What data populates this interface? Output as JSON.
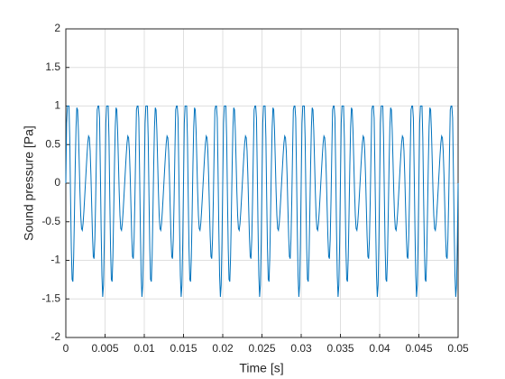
{
  "chart_data": {
    "type": "line",
    "xlabel": "Time [s]",
    "ylabel": "Sound pressure [Pa]",
    "xlim": [
      0,
      0.05
    ],
    "xticks": [
      0,
      0.005,
      0.01,
      0.015,
      0.02,
      0.025,
      0.03,
      0.035,
      0.04,
      0.045,
      0.05
    ],
    "ylim": [
      -2,
      2
    ],
    "yticks": [
      -2,
      -1.5,
      -1,
      -0.5,
      0,
      0.5,
      1,
      1.5,
      2
    ],
    "grid": true,
    "x": [
      0,
      0.0001,
      0.0002,
      0.0003,
      0.0004,
      0.0005,
      0.0006,
      0.0007,
      0.0008,
      0.0009,
      0.001,
      0.0011,
      0.0012,
      0.0013,
      0.0014,
      0.0015,
      0.0016,
      0.0017,
      0.0018,
      0.0019,
      0.002,
      0.0021,
      0.0022,
      0.0023,
      0.0024,
      0.0025,
      0.0026,
      0.0027,
      0.0028,
      0.0029,
      0.003,
      0.0031,
      0.0032,
      0.0033,
      0.0034,
      0.0035,
      0.0036,
      0.0037,
      0.0038,
      0.0039,
      0.004,
      0.0041,
      0.0042,
      0.0043,
      0.0044,
      0.0045,
      0.0046,
      0.0047,
      0.0048,
      0.0049,
      0.005,
      0.0051,
      0.0052,
      0.0053,
      0.0054,
      0.0055,
      0.0056,
      0.0057,
      0.0058,
      0.0059,
      0.006,
      0.0061,
      0.0062,
      0.0063,
      0.0064,
      0.0065,
      0.0066,
      0.0067,
      0.0068,
      0.0069,
      0.007,
      0.0071,
      0.0072,
      0.0073,
      0.0074,
      0.0075,
      0.0076,
      0.0077,
      0.0078,
      0.0079,
      0.008,
      0.0081,
      0.0082,
      0.0083,
      0.0084,
      0.0085,
      0.0086,
      0.0087,
      0.0088,
      0.0089,
      0.009,
      0.0091,
      0.0092,
      0.0093,
      0.0094,
      0.0095,
      0.0096,
      0.0097,
      0.0098,
      0.0099,
      0.01,
      0.0101,
      0.0102,
      0.0103,
      0.0104,
      0.0105,
      0.0106,
      0.0107,
      0.0108,
      0.0109,
      0.011,
      0.0111,
      0.0112,
      0.0113,
      0.0114,
      0.0115,
      0.0116,
      0.0117,
      0.0118,
      0.0119,
      0.012,
      0.0121,
      0.0122,
      0.0123,
      0.0124,
      0.0125,
      0.0126,
      0.0127,
      0.0128,
      0.0129,
      0.013,
      0.0131,
      0.0132,
      0.0133,
      0.0134,
      0.0135,
      0.0136,
      0.0137,
      0.0138,
      0.0139,
      0.014,
      0.0141,
      0.0142,
      0.0143,
      0.0144,
      0.0145,
      0.0146,
      0.0147,
      0.0148,
      0.0149,
      0.015,
      0.0151,
      0.0152,
      0.0153,
      0.0154,
      0.0155,
      0.0156,
      0.0157,
      0.0158,
      0.0159,
      0.016,
      0.0161,
      0.0162,
      0.0163,
      0.0164,
      0.0165,
      0.0166,
      0.0167,
      0.0168,
      0.0169,
      0.017,
      0.0171,
      0.0172,
      0.0173,
      0.0174,
      0.0175,
      0.0176,
      0.0177,
      0.0178,
      0.0179,
      0.018,
      0.0181,
      0.0182,
      0.0183,
      0.0184,
      0.0185,
      0.0186,
      0.0187,
      0.0188,
      0.0189,
      0.019,
      0.0191,
      0.0192,
      0.0193,
      0.0194,
      0.0195,
      0.0196,
      0.0197,
      0.0198,
      0.0199,
      0.02,
      0.0201,
      0.0202,
      0.0203,
      0.0204,
      0.0205,
      0.0206,
      0.0207,
      0.0208,
      0.0209,
      0.021,
      0.0211,
      0.0212,
      0.0213,
      0.0214,
      0.0215,
      0.0216,
      0.0217,
      0.0218,
      0.0219,
      0.022,
      0.0221,
      0.0222,
      0.0223,
      0.0224,
      0.0225,
      0.0226,
      0.0227,
      0.0228,
      0.0229,
      0.023,
      0.0231,
      0.0232,
      0.0233,
      0.0234,
      0.0235,
      0.0236,
      0.0237,
      0.0238,
      0.0239,
      0.024,
      0.0241,
      0.0242,
      0.0243,
      0.0244,
      0.0245,
      0.0246,
      0.0247,
      0.0248,
      0.0249,
      0.025,
      0.0251,
      0.0252,
      0.0253,
      0.0254,
      0.0255,
      0.0256,
      0.0257,
      0.0258,
      0.0259,
      0.026,
      0.0261,
      0.0262,
      0.0263,
      0.0264,
      0.0265,
      0.0266,
      0.0267,
      0.0268,
      0.0269,
      0.027,
      0.0271,
      0.0272,
      0.0273,
      0.0274,
      0.0275,
      0.0276,
      0.0277,
      0.0278,
      0.0279,
      0.028,
      0.0281,
      0.0282,
      0.0283,
      0.0284,
      0.0285,
      0.0286,
      0.0287,
      0.0288,
      0.0289,
      0.029,
      0.0291,
      0.0292,
      0.0293,
      0.0294,
      0.0295,
      0.0296,
      0.0297,
      0.0298,
      0.0299,
      0.03,
      0.0301,
      0.0302,
      0.0303,
      0.0304,
      0.0305,
      0.0306,
      0.0307,
      0.0308,
      0.0309,
      0.031,
      0.0311,
      0.0312,
      0.0313,
      0.0314,
      0.0315,
      0.0316,
      0.0317,
      0.0318,
      0.0319,
      0.032,
      0.0321,
      0.0322,
      0.0323,
      0.0324,
      0.0325,
      0.0326,
      0.0327,
      0.0328,
      0.0329,
      0.033,
      0.0331,
      0.0332,
      0.0333,
      0.0334,
      0.0335,
      0.0336,
      0.0337,
      0.0338,
      0.0339,
      0.034,
      0.0341,
      0.0342,
      0.0343,
      0.0344,
      0.0345,
      0.0346,
      0.0347,
      0.0348,
      0.0349,
      0.035,
      0.0351,
      0.0352,
      0.0353,
      0.0354,
      0.0355,
      0.0356,
      0.0357,
      0.0358,
      0.0359,
      0.036,
      0.0361,
      0.0362,
      0.0363,
      0.0364,
      0.0365,
      0.0366,
      0.0367,
      0.0368,
      0.0369,
      0.037,
      0.0371,
      0.0372,
      0.0373,
      0.0374,
      0.0375,
      0.0376,
      0.0377,
      0.0378,
      0.0379,
      0.038,
      0.0381,
      0.0382,
      0.0383,
      0.0384,
      0.0385,
      0.0386,
      0.0387,
      0.0388,
      0.0389,
      0.039,
      0.0391,
      0.0392,
      0.0393,
      0.0394,
      0.0395,
      0.0396,
      0.0397,
      0.0398,
      0.0399,
      0.04,
      0.0401,
      0.0402,
      0.0403,
      0.0404,
      0.0405,
      0.0406,
      0.0407,
      0.0408,
      0.0409,
      0.041,
      0.0411,
      0.0412,
      0.0413,
      0.0414,
      0.0415,
      0.0416,
      0.0417,
      0.0418,
      0.0419,
      0.042,
      0.0421,
      0.0422,
      0.0423,
      0.0424,
      0.0425,
      0.0426,
      0.0427,
      0.0428,
      0.0429,
      0.043,
      0.0431,
      0.0432,
      0.0433,
      0.0434,
      0.0435,
      0.0436,
      0.0437,
      0.0438,
      0.0439,
      0.044,
      0.0441,
      0.0442,
      0.0443,
      0.0444,
      0.0445,
      0.0446,
      0.0447,
      0.0448,
      0.0449,
      0.045,
      0.0451,
      0.0452,
      0.0453,
      0.0454,
      0.0455,
      0.0456,
      0.0457,
      0.0458,
      0.0459,
      0.046,
      0.0461,
      0.0462,
      0.0463,
      0.0464,
      0.0465,
      0.0466,
      0.0467,
      0.0468,
      0.0469,
      0.047,
      0.0471,
      0.0472,
      0.0473,
      0.0474,
      0.0475,
      0.0476,
      0.0477,
      0.0478,
      0.0479,
      0.048,
      0.0481,
      0.0482,
      0.0483,
      0.0484,
      0.0485,
      0.0486,
      0.0487,
      0.0488,
      0.0489,
      0.049,
      0.0491,
      0.0492,
      0.0493,
      0.0494,
      0.0495,
      0.0496,
      0.0497,
      0.0498,
      0.0499,
      0.05
    ],
    "series": [
      {
        "color": "#0072bd",
        "values": [
          0,
          0.7757,
          1,
          1,
          1,
          0.5878,
          -0.1686,
          -0.8436,
          -1.246,
          -1.2762,
          -0.9511,
          -0.3906,
          0.2269,
          0.7243,
          0.9784,
          0.9511,
          0.6884,
          0.295,
          -0.1075,
          -0.4192,
          -0.5878,
          -0.6109,
          -0.5225,
          -0.3688,
          -0.1879,
          0,
          0.1879,
          0.3688,
          0.5225,
          0.6109,
          0.5878,
          0.4192,
          0.1075,
          -0.295,
          -0.6884,
          -0.9511,
          -0.9784,
          -0.7243,
          -0.2269,
          0.3906,
          0.9511,
          1,
          1,
          0.8436,
          0.1686,
          -0.5878,
          -1.1987,
          -1.4735,
          -1.3198,
          -0.7757,
          0,
          0.7757,
          1,
          1,
          1,
          0.5878,
          -0.1686,
          -0.8436,
          -1.246,
          -1.2762,
          -0.9511,
          -0.3906,
          0.2269,
          0.7243,
          0.9784,
          0.9511,
          0.6884,
          0.295,
          -0.1075,
          -0.4192,
          -0.5878,
          -0.6109,
          -0.5225,
          -0.3688,
          -0.1879,
          0,
          0.1879,
          0.3688,
          0.5225,
          0.6109,
          0.5878,
          0.4192,
          0.1075,
          -0.295,
          -0.6884,
          -0.9511,
          -0.9784,
          -0.7243,
          -0.2269,
          0.3906,
          0.9511,
          1,
          1,
          0.8436,
          0.1686,
          -0.5878,
          -1.1987,
          -1.4735,
          -1.3198,
          -0.7757,
          0,
          0.7757,
          1,
          1,
          1,
          0.5878,
          -0.1686,
          -0.8436,
          -1.246,
          -1.2762,
          -0.9511,
          -0.3906,
          0.2269,
          0.7243,
          0.9784,
          0.9511,
          0.6884,
          0.295,
          -0.1075,
          -0.4192,
          -0.5878,
          -0.6109,
          -0.5225,
          -0.3688,
          -0.1879,
          0,
          0.1879,
          0.3688,
          0.5225,
          0.6109,
          0.5878,
          0.4192,
          0.1075,
          -0.295,
          -0.6884,
          -0.9511,
          -0.9784,
          -0.7243,
          -0.2269,
          0.3906,
          0.9511,
          1,
          1,
          0.8436,
          0.1686,
          -0.5878,
          -1.1987,
          -1.4735,
          -1.3198,
          -0.7757,
          0,
          0.7757,
          1,
          1,
          1,
          0.5878,
          -0.1686,
          -0.8436,
          -1.246,
          -1.2762,
          -0.9511,
          -0.3906,
          0.2269,
          0.7243,
          0.9784,
          0.9511,
          0.6884,
          0.295,
          -0.1075,
          -0.4192,
          -0.5878,
          -0.6109,
          -0.5225,
          -0.3688,
          -0.1879,
          0,
          0.1879,
          0.3688,
          0.5225,
          0.6109,
          0.5878,
          0.4192,
          0.1075,
          -0.295,
          -0.6884,
          -0.9511,
          -0.9784,
          -0.7243,
          -0.2269,
          0.3906,
          0.9511,
          1,
          1,
          0.8436,
          0.1686,
          -0.5878,
          -1.1987,
          -1.4735,
          -1.3198,
          -0.7757,
          0,
          0.7757,
          1,
          1,
          1,
          0.5878,
          -0.1686,
          -0.8436,
          -1.246,
          -1.2762,
          -0.9511,
          -0.3906,
          0.2269,
          0.7243,
          0.9784,
          0.9511,
          0.6884,
          0.295,
          -0.1075,
          -0.4192,
          -0.5878,
          -0.6109,
          -0.5225,
          -0.3688,
          -0.1879,
          0,
          0.1879,
          0.3688,
          0.5225,
          0.6109,
          0.5878,
          0.4192,
          0.1075,
          -0.295,
          -0.6884,
          -0.9511,
          -0.9784,
          -0.7243,
          -0.2269,
          0.3906,
          0.9511,
          1,
          1,
          0.8436,
          0.1686,
          -0.5878,
          -1.1987,
          -1.4735,
          -1.3198,
          -0.7757,
          0,
          0.7757,
          1,
          1,
          1,
          0.5878,
          -0.1686,
          -0.8436,
          -1.246,
          -1.2762,
          -0.9511,
          -0.3906,
          0.2269,
          0.7243,
          0.9784,
          0.9511,
          0.6884,
          0.295,
          -0.1075,
          -0.4192,
          -0.5878,
          -0.6109,
          -0.5225,
          -0.3688,
          -0.1879,
          0,
          0.1879,
          0.3688,
          0.5225,
          0.6109,
          0.5878,
          0.4192,
          0.1075,
          -0.295,
          -0.6884,
          -0.9511,
          -0.9784,
          -0.7243,
          -0.2269,
          0.3906,
          0.9511,
          1,
          1,
          0.8436,
          0.1686,
          -0.5878,
          -1.1987,
          -1.4735,
          -1.3198,
          -0.7757,
          0,
          0.7757,
          1,
          1,
          1,
          0.5878,
          -0.1686,
          -0.8436,
          -1.246,
          -1.2762,
          -0.9511,
          -0.3906,
          0.2269,
          0.7243,
          0.9784,
          0.9511,
          0.6884,
          0.295,
          -0.1075,
          -0.4192,
          -0.5878,
          -0.6109,
          -0.5225,
          -0.3688,
          -0.1879,
          0,
          0.1879,
          0.3688,
          0.5225,
          0.6109,
          0.5878,
          0.4192,
          0.1075,
          -0.295,
          -0.6884,
          -0.9511,
          -0.9784,
          -0.7243,
          -0.2269,
          0.3906,
          0.9511,
          1,
          1,
          0.8436,
          0.1686,
          -0.5878,
          -1.1987,
          -1.4735,
          -1.3198,
          -0.7757,
          0,
          0.7757,
          1,
          1,
          1,
          0.5878,
          -0.1686,
          -0.8436,
          -1.246,
          -1.2762,
          -0.9511,
          -0.3906,
          0.2269,
          0.7243,
          0.9784,
          0.9511,
          0.6884,
          0.295,
          -0.1075,
          -0.4192,
          -0.5878,
          -0.6109,
          -0.5225,
          -0.3688,
          -0.1879,
          0,
          0.1879,
          0.3688,
          0.5225,
          0.6109,
          0.5878,
          0.4192,
          0.1075,
          -0.295,
          -0.6884,
          -0.9511,
          -0.9784,
          -0.7243,
          -0.2269,
          0.3906,
          0.9511,
          1,
          1,
          0.8436,
          0.1686,
          -0.5878,
          -1.1987,
          -1.4735,
          -1.3198,
          -0.7757,
          0,
          0.7757,
          1,
          1,
          1,
          0.5878,
          -0.1686,
          -0.8436,
          -1.246,
          -1.2762,
          -0.9511,
          -0.3906,
          0.2269,
          0.7243,
          0.9784,
          0.9511,
          0.6884,
          0.295,
          -0.1075,
          -0.4192,
          -0.5878,
          -0.6109,
          -0.5225,
          -0.3688,
          -0.1879,
          0,
          0.1879,
          0.3688,
          0.5225,
          0.6109,
          0.5878,
          0.4192,
          0.1075,
          -0.295,
          -0.6884,
          -0.9511,
          -0.9784,
          -0.7243,
          -0.2269,
          0.3906,
          0.9511,
          1,
          1,
          0.8436,
          0.1686,
          -0.5878,
          -1.1987,
          -1.4735,
          -1.3198,
          -0.7757,
          0,
          0.7757,
          1,
          1,
          1,
          0.5878,
          -0.1686,
          -0.8436,
          -1.246,
          -1.2762,
          -0.9511,
          -0.3906,
          0.2269,
          0.7243,
          0.9784,
          0.9511,
          0.6884,
          0.295,
          -0.1075,
          -0.4192,
          -0.5878,
          -0.6109,
          -0.5225,
          -0.3688,
          -0.1879,
          0,
          0.1879,
          0.3688,
          0.5225,
          0.6109,
          0.5878,
          0.4192,
          0.1075,
          -0.295,
          -0.6884,
          -0.9511,
          -0.9784,
          -0.7243,
          -0.2269,
          0.3906,
          0.9511,
          1,
          1,
          0.8436,
          0.1686,
          -0.5878,
          -1.1987,
          -1.4735,
          -1.3198,
          -0.7757,
          0
        ]
      }
    ]
  }
}
